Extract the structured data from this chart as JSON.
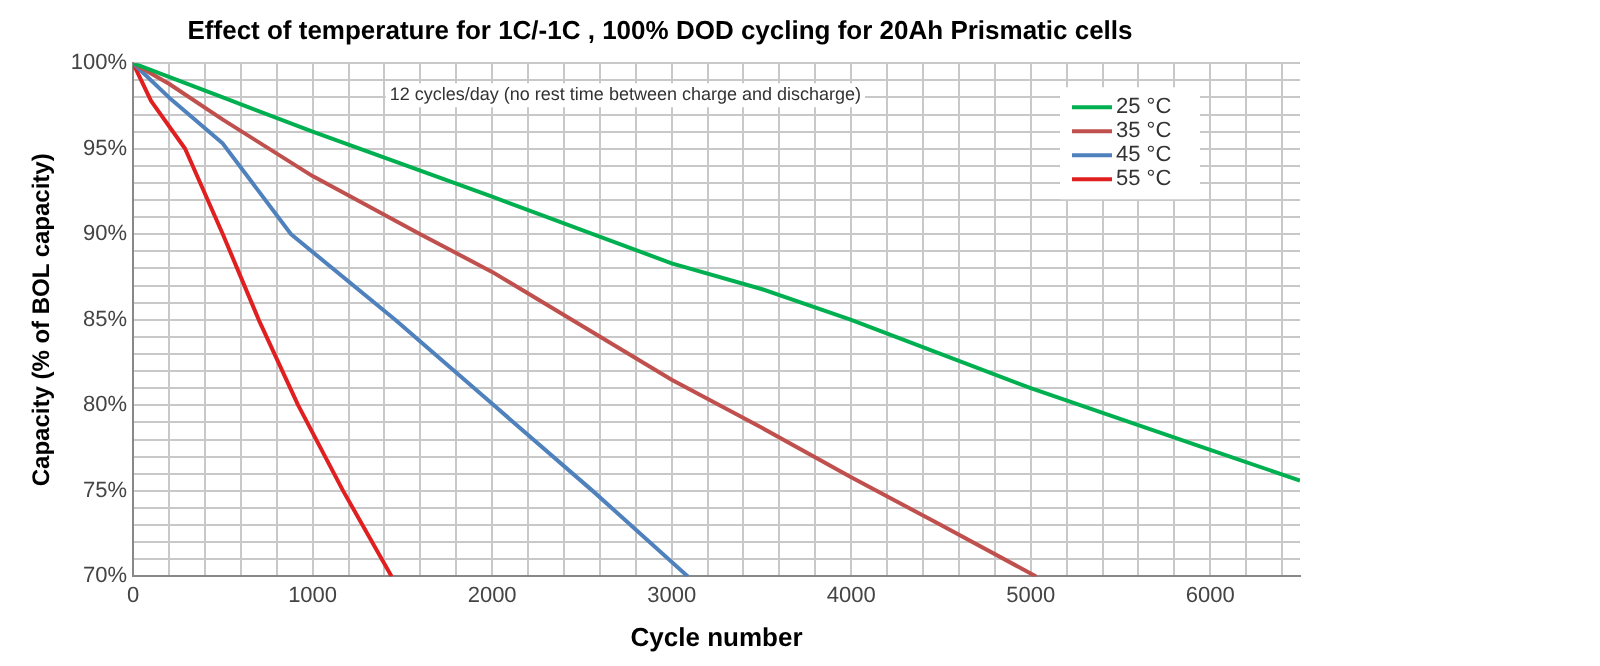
{
  "chart_data": {
    "type": "line",
    "title": "Effect of temperature for 1C/-1C , 100% DOD cycling for 20Ah Prismatic cells",
    "xlabel": "Cycle number",
    "ylabel": "Capacity (% of BOL capacity)",
    "annotations": [
      "12 cycles/day (no rest time between charge and discharge)"
    ],
    "series": [
      {
        "name": "25 °C",
        "color": "#00b050",
        "x": [
          0,
          200,
          500,
          1000,
          2000,
          3000,
          3500,
          4000,
          5000,
          6000,
          6500
        ],
        "values": [
          100,
          99.2,
          98,
          96,
          92.2,
          88.3,
          86.8,
          85,
          81,
          77.4,
          75.6
        ]
      },
      {
        "name": "35 °C",
        "color": "#c0504d",
        "x": [
          0,
          200,
          500,
          1000,
          1600,
          2000,
          3000,
          3500,
          4000,
          4500,
          5030
        ],
        "values": [
          100,
          98.8,
          96.7,
          93.4,
          90,
          87.8,
          81.5,
          78.7,
          75.8,
          73,
          70
        ]
      },
      {
        "name": "45 °C",
        "color": "#4f81bd",
        "x": [
          0,
          200,
          500,
          880,
          1460,
          2010,
          2560,
          3090
        ],
        "values": [
          100,
          98,
          95.3,
          90,
          85,
          80,
          75,
          70
        ]
      },
      {
        "name": "55 °C",
        "color": "#e02020",
        "x": [
          0,
          100,
          290,
          500,
          700,
          920,
          1170,
          1440
        ],
        "values": [
          100,
          97.8,
          95,
          90,
          85,
          80,
          75,
          70
        ]
      }
    ],
    "xlim": [
      0,
      6500
    ],
    "xticks": [
      0,
      {
        "value": 200,
        "label": null
      },
      {
        "value": 400,
        "label": null
      },
      {
        "value": 600,
        "label": null
      },
      {
        "value": 800,
        "label": null
      },
      1000,
      {
        "value": 1200,
        "label": null
      },
      {
        "value": 1400,
        "label": null
      },
      {
        "value": 1600,
        "label": null
      },
      {
        "value": 1800,
        "label": null
      },
      2000,
      {
        "value": 2200,
        "label": null
      },
      {
        "value": 2400,
        "label": null
      },
      {
        "value": 2600,
        "label": null
      },
      {
        "value": 2800,
        "label": null
      },
      3000,
      {
        "value": 3200,
        "label": null
      },
      {
        "value": 3400,
        "label": null
      },
      {
        "value": 3600,
        "label": null
      },
      {
        "value": 3800,
        "label": null
      },
      4000,
      {
        "value": 4200,
        "label": null
      },
      {
        "value": 4400,
        "label": null
      },
      {
        "value": 4600,
        "label": null
      },
      {
        "value": 4800,
        "label": null
      },
      5000,
      {
        "value": 5200,
        "label": null
      },
      {
        "value": 5400,
        "label": null
      },
      {
        "value": 5600,
        "label": null
      },
      {
        "value": 5800,
        "label": null
      },
      6000,
      {
        "value": 6200,
        "label": null
      },
      {
        "value": 6400,
        "label": null
      }
    ],
    "ylim": [
      70,
      100
    ],
    "yticks": [
      {
        "value": 70,
        "label": "70%"
      },
      {
        "value": 71,
        "label": null
      },
      {
        "value": 72,
        "label": null
      },
      {
        "value": 73,
        "label": null
      },
      {
        "value": 74,
        "label": null
      },
      {
        "value": 75,
        "label": "75%"
      },
      {
        "value": 76,
        "label": null
      },
      {
        "value": 77,
        "label": null
      },
      {
        "value": 78,
        "label": null
      },
      {
        "value": 79,
        "label": null
      },
      {
        "value": 80,
        "label": "80%"
      },
      {
        "value": 81,
        "label": null
      },
      {
        "value": 82,
        "label": null
      },
      {
        "value": 83,
        "label": null
      },
      {
        "value": 84,
        "label": null
      },
      {
        "value": 85,
        "label": "85%"
      },
      {
        "value": 86,
        "label": null
      },
      {
        "value": 87,
        "label": null
      },
      {
        "value": 88,
        "label": null
      },
      {
        "value": 89,
        "label": null
      },
      {
        "value": 90,
        "label": "90%"
      },
      {
        "value": 91,
        "label": null
      },
      {
        "value": 92,
        "label": null
      },
      {
        "value": 93,
        "label": null
      },
      {
        "value": 94,
        "label": null
      },
      {
        "value": 95,
        "label": "95%"
      },
      {
        "value": 96,
        "label": null
      },
      {
        "value": 97,
        "label": null
      },
      {
        "value": 98,
        "label": null
      },
      {
        "value": 99,
        "label": null
      },
      {
        "value": 100,
        "label": "100%"
      }
    ],
    "grid": true,
    "legend": "top right",
    "marker": "none",
    "line_style": "solid"
  }
}
